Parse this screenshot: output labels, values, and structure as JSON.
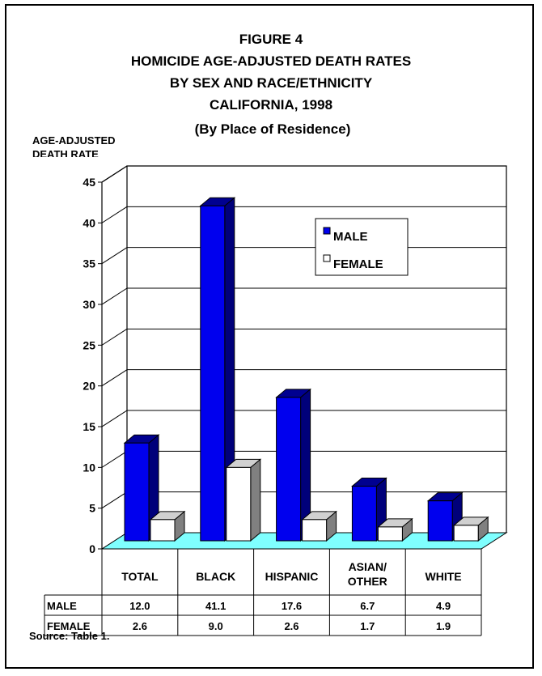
{
  "chart_data": {
    "type": "bar",
    "title_lines": [
      "FIGURE 4",
      "HOMICIDE AGE-ADJUSTED DEATH RATES",
      "BY SEX AND RACE/ETHNICITY",
      "CALIFORNIA, 1998",
      "(By Place of Residence)"
    ],
    "ylabel_lines": [
      "AGE-ADJUSTED",
      "DEATH RATE"
    ],
    "ylim": [
      0,
      45
    ],
    "yticks": [
      0,
      5,
      10,
      15,
      20,
      25,
      30,
      35,
      40,
      45
    ],
    "categories": [
      [
        "TOTAL"
      ],
      [
        "BLACK"
      ],
      [
        "HISPANIC"
      ],
      [
        "ASIAN/",
        "OTHER"
      ],
      [
        "WHITE"
      ]
    ],
    "series": [
      {
        "name": "MALE",
        "values": [
          12.0,
          41.1,
          17.6,
          6.7,
          4.9
        ],
        "value_labels": [
          "12.0",
          "41.1",
          "17.6",
          "6.7",
          "4.9"
        ]
      },
      {
        "name": "FEMALE",
        "values": [
          2.6,
          9.0,
          2.6,
          1.7,
          1.9
        ],
        "value_labels": [
          "2.6",
          "9.0",
          "2.6",
          "1.7",
          "1.9"
        ]
      }
    ],
    "legend_position": "top-right",
    "grid": true,
    "colors": {
      "male_front": "#0000ee",
      "male_side": "#00007a",
      "male_top": "#000090",
      "female_front": "#ffffff",
      "female_side": "#808080",
      "female_top": "#d0d0d0",
      "floor": "#7fffff",
      "grid": "#000000"
    }
  },
  "source_note": "Source:  Table 1."
}
